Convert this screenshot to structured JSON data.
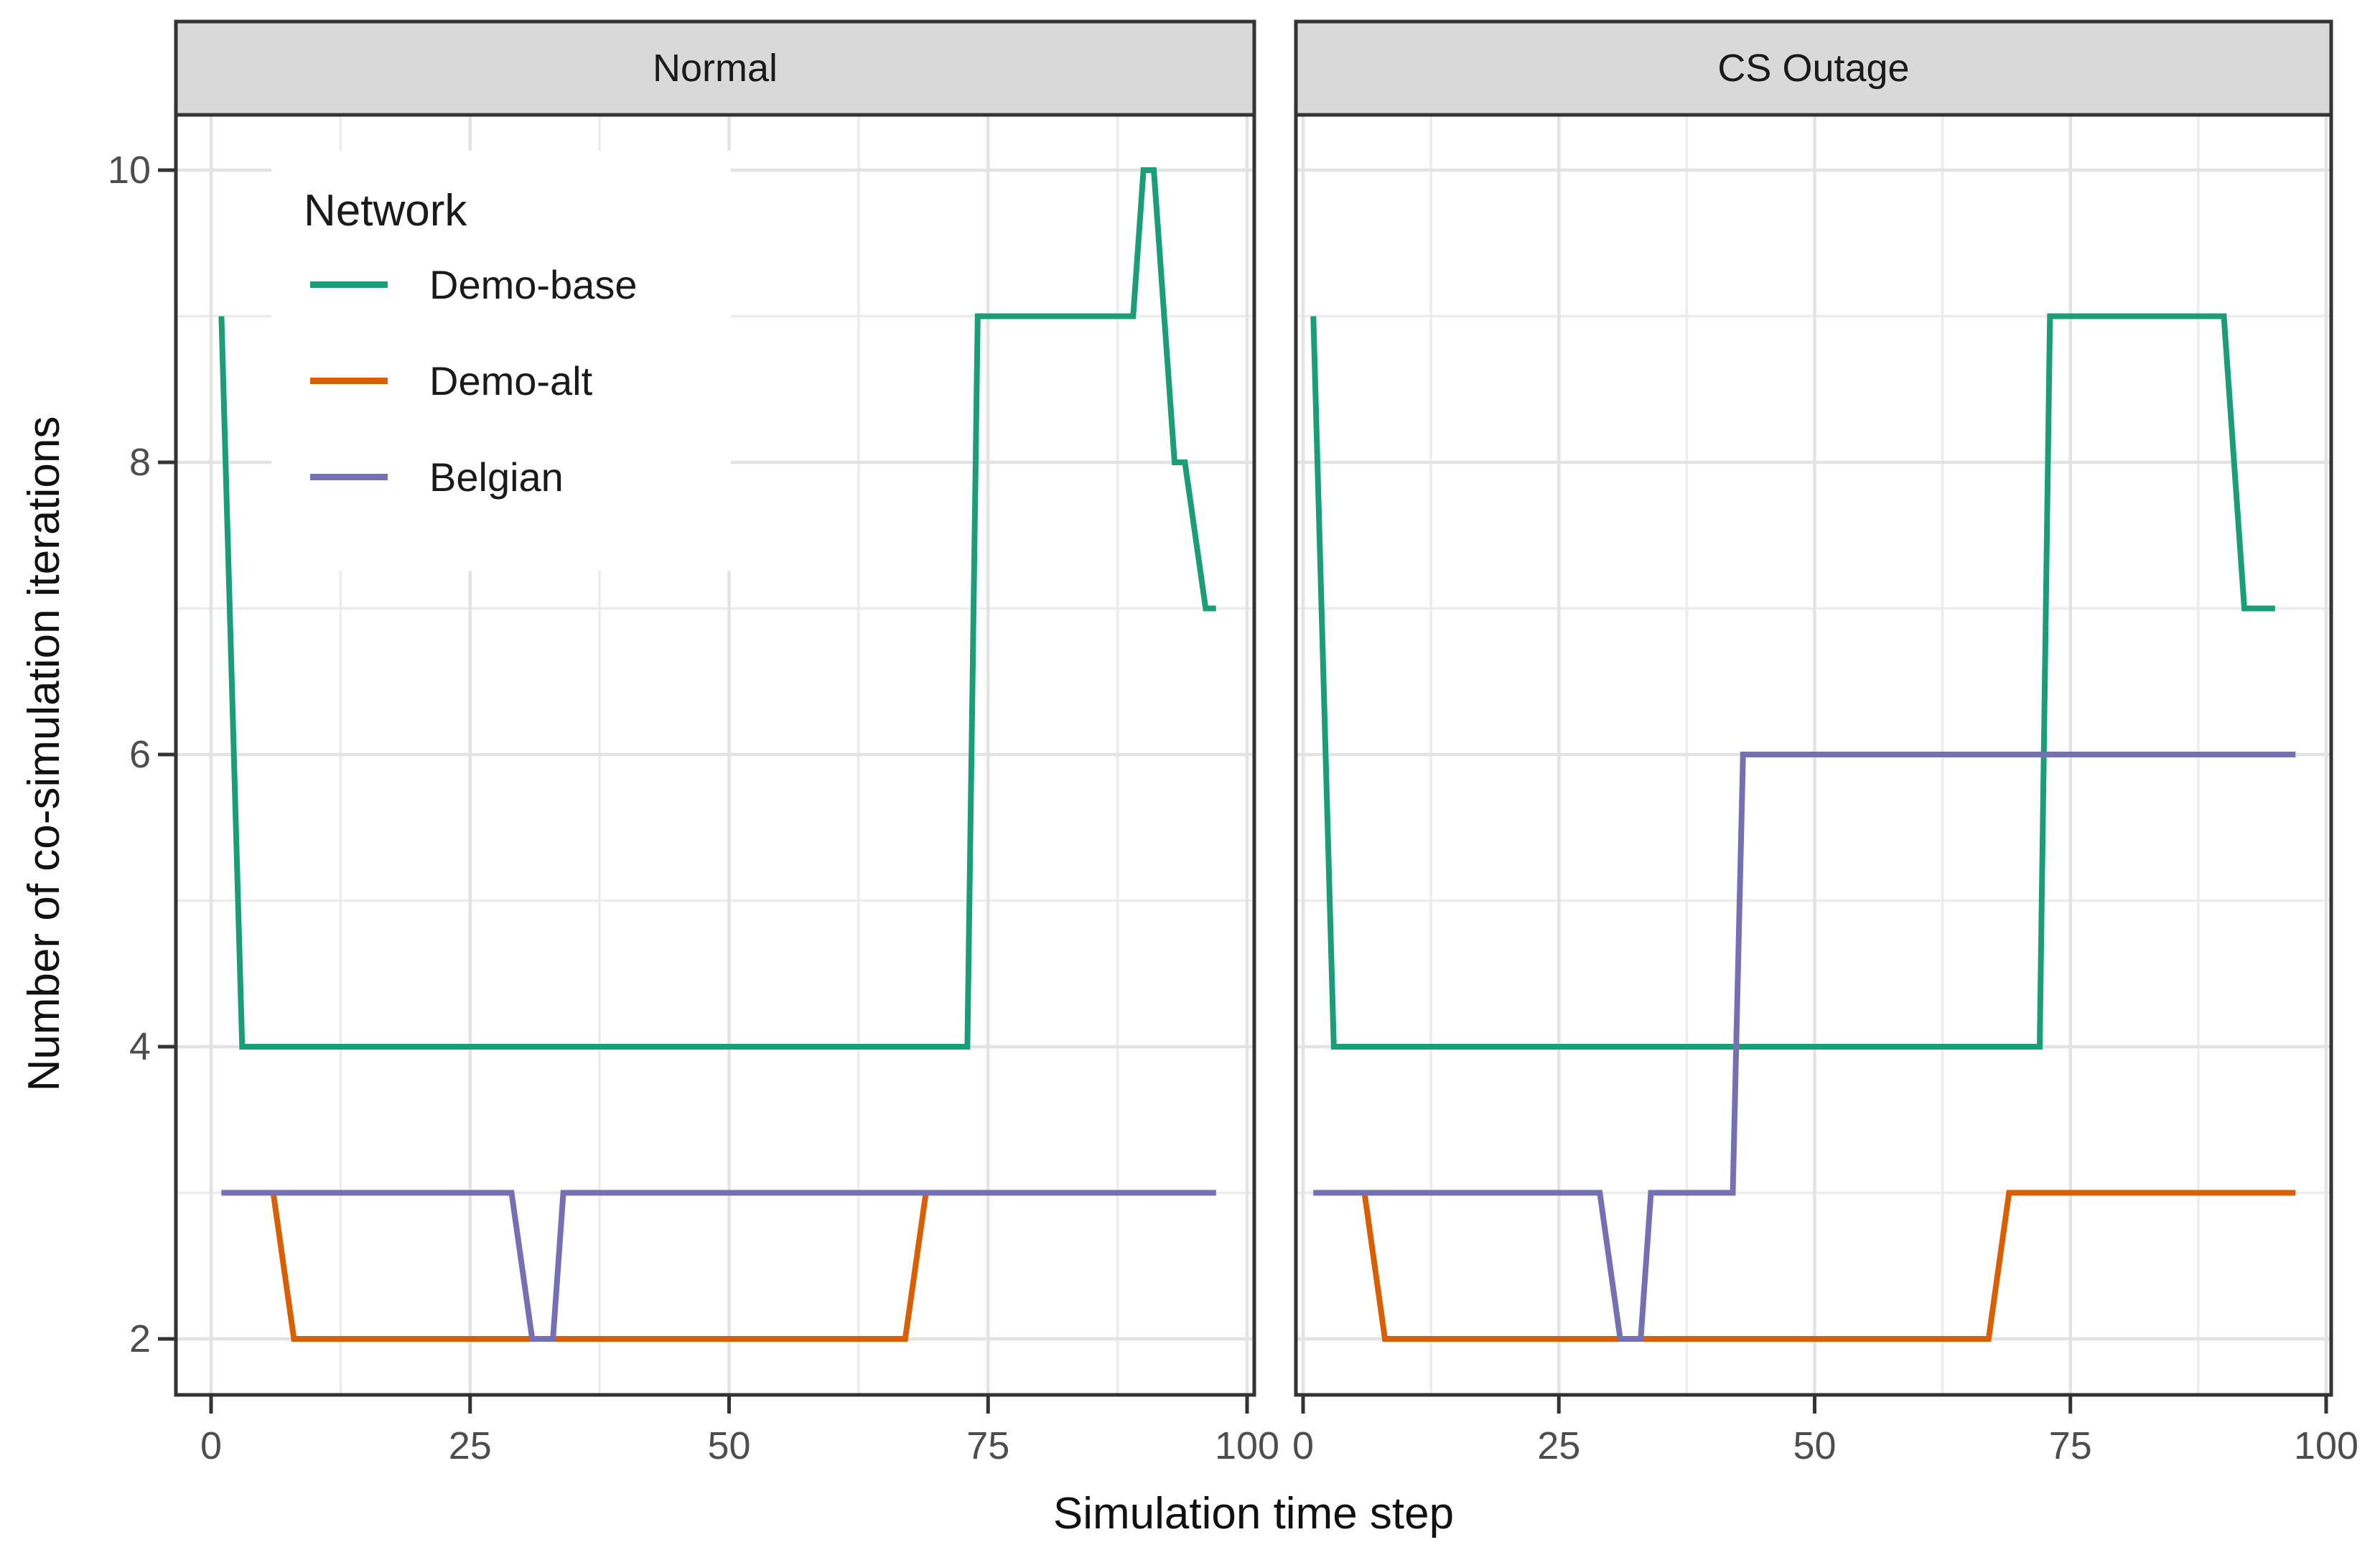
{
  "chart_data": {
    "type": "line",
    "facet_variable_note": "two facet panels side by side",
    "xlabel": "Simulation time step",
    "ylabel": "Number of co-simulation iterations",
    "legend": {
      "title": "Network",
      "position": "inside top-left of first panel"
    },
    "x_ticks": [
      "0",
      "25",
      "50",
      "75",
      "100"
    ],
    "x_tick_values": [
      0,
      25,
      50,
      75,
      100
    ],
    "x_minor_values": [
      12.5,
      37.5,
      62.5,
      87.5
    ],
    "y_ticks": [
      "2",
      "4",
      "6",
      "8",
      "10"
    ],
    "y_tick_values": [
      2,
      4,
      6,
      8,
      10
    ],
    "y_minor_values": [
      3,
      5,
      7,
      9
    ],
    "xlim": [
      -3.4,
      100.7
    ],
    "ylim": [
      1.62,
      10.38
    ],
    "grid": "on",
    "facets": [
      {
        "label": "Normal",
        "series": [
          {
            "name": "Demo-base",
            "color": "#1B9E77",
            "points": [
              [
                1,
                9
              ],
              [
                3,
                4
              ],
              [
                73,
                4
              ],
              [
                74,
                9
              ],
              [
                89,
                9
              ],
              [
                90,
                10
              ],
              [
                91,
                10
              ],
              [
                93,
                8
              ],
              [
                94,
                8
              ],
              [
                96,
                7
              ],
              [
                97,
                7
              ]
            ]
          },
          {
            "name": "Demo-alt",
            "color": "#D95F02",
            "points": [
              [
                1,
                3
              ],
              [
                6,
                3
              ],
              [
                8,
                2
              ],
              [
                67,
                2
              ],
              [
                69,
                3
              ],
              [
                97,
                3
              ]
            ]
          },
          {
            "name": "Belgian",
            "color": "#7570B3",
            "points": [
              [
                1,
                3
              ],
              [
                29,
                3
              ],
              [
                31,
                2
              ],
              [
                33,
                2
              ],
              [
                34,
                3
              ],
              [
                97,
                3
              ]
            ]
          }
        ]
      },
      {
        "label": "CS Outage",
        "series": [
          {
            "name": "Demo-base",
            "color": "#1B9E77",
            "points": [
              [
                1,
                9
              ],
              [
                3,
                4
              ],
              [
                72,
                4
              ],
              [
                73,
                9
              ],
              [
                90,
                9
              ],
              [
                92,
                7
              ],
              [
                95,
                7
              ]
            ]
          },
          {
            "name": "Demo-alt",
            "color": "#D95F02",
            "points": [
              [
                1,
                3
              ],
              [
                6,
                3
              ],
              [
                8,
                2
              ],
              [
                67,
                2
              ],
              [
                69,
                3
              ],
              [
                97,
                3
              ]
            ]
          },
          {
            "name": "Belgian",
            "color": "#7570B3",
            "points": [
              [
                1,
                3
              ],
              [
                29,
                3
              ],
              [
                31,
                2
              ],
              [
                33,
                2
              ],
              [
                34,
                3
              ],
              [
                42,
                3
              ],
              [
                43,
                6
              ],
              [
                97,
                6
              ]
            ]
          }
        ]
      }
    ],
    "style": {
      "strip_fill": "#D9D9D9",
      "panel_border": "#333333",
      "grid_major": "#E3E3E3",
      "grid_minor": "#ECECEC",
      "tick_color": "#333333",
      "tick_label_color": "#4d4d4d",
      "line_width": 8
    }
  }
}
